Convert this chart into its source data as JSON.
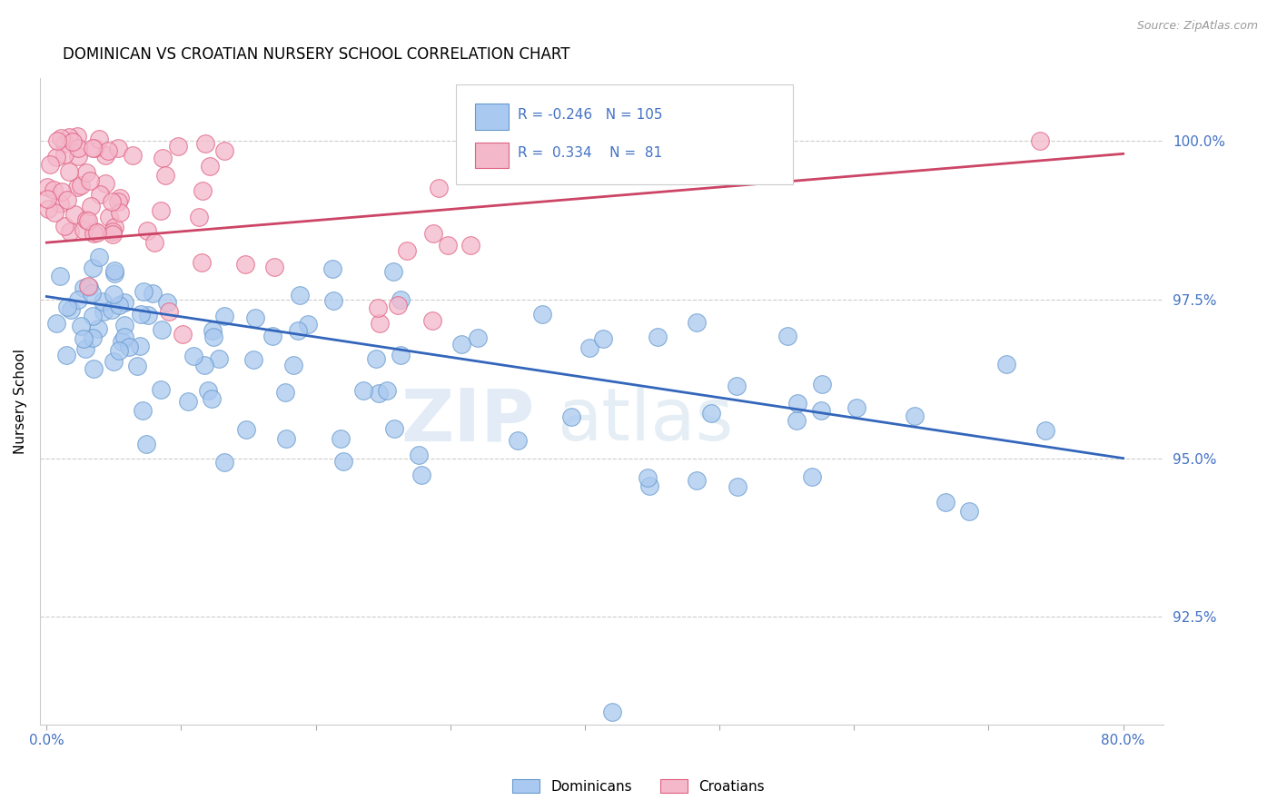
{
  "title": "DOMINICAN VS CROATIAN NURSERY SCHOOL CORRELATION CHART",
  "source": "Source: ZipAtlas.com",
  "ylabel": "Nursery School",
  "ytick_labels": [
    "92.5%",
    "95.0%",
    "97.5%",
    "100.0%"
  ],
  "ytick_values": [
    0.925,
    0.95,
    0.975,
    1.0
  ],
  "xlim": [
    -0.005,
    0.83
  ],
  "ylim": [
    0.908,
    1.01
  ],
  "dominican_color": "#aac9f0",
  "croatian_color": "#f4b8cb",
  "dominican_edge": "#6699cc",
  "croatian_edge": "#e06080",
  "trend_dominican_color": "#3366bb",
  "trend_croatian_color": "#cc4466",
  "legend_r_dominican": "-0.246",
  "legend_n_dominican": "105",
  "legend_r_croatian": "0.334",
  "legend_n_croatian": "81",
  "watermark_zip": "ZIP",
  "watermark_atlas": "atlas",
  "background_color": "#ffffff",
  "grid_color": "#cccccc",
  "dom_trend_x0": 0.0,
  "dom_trend_y0": 0.9755,
  "dom_trend_x1": 0.8,
  "dom_trend_y1": 0.95,
  "cro_trend_x0": 0.0,
  "cro_trend_y0": 0.984,
  "cro_trend_x1": 0.8,
  "cro_trend_y1": 0.998
}
